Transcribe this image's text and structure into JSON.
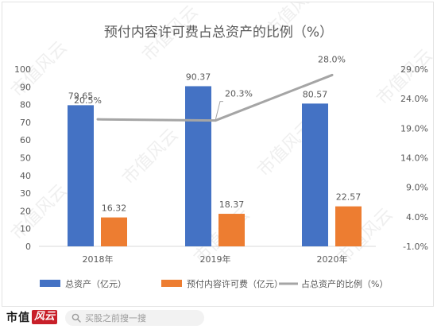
{
  "chart_data": {
    "type": "bar",
    "title": "预付内容许可费占总资产的比例（%）",
    "categories": [
      "2018年",
      "2019年",
      "2020年"
    ],
    "ylim": [
      0,
      100
    ],
    "y_ticks": [
      0,
      10,
      20,
      30,
      40,
      50,
      60,
      70,
      80,
      90,
      100
    ],
    "y2lim": [
      -1.0,
      29.0
    ],
    "y2_ticks": [
      "-1.0%",
      "4.0%",
      "9.0%",
      "14.0%",
      "19.0%",
      "24.0%",
      "29.0%"
    ],
    "series": [
      {
        "name": "总资产（亿元）",
        "type": "bar",
        "color": "#4472c4",
        "values": [
          79.65,
          90.37,
          80.57
        ],
        "labels": [
          "79.65",
          "90.37",
          "80.57"
        ]
      },
      {
        "name": "预付内容许可费（亿元）",
        "type": "bar",
        "color": "#ed7d31",
        "values": [
          16.32,
          18.37,
          22.57
        ],
        "labels": [
          "16.32",
          "18.37",
          "22.57"
        ]
      },
      {
        "name": "占总资产的比例（%）",
        "type": "line",
        "axis": "secondary",
        "color": "#a5a5a5",
        "values": [
          20.5,
          20.3,
          28.0
        ],
        "labels": [
          "20.5%",
          "20.3%",
          "28.0%"
        ]
      }
    ],
    "legend_position": "bottom",
    "grid": false
  },
  "watermark": "市值风云",
  "footer": {
    "brand_text": "市值",
    "brand_mark": "风云",
    "search_placeholder": "买股之前搜一搜"
  }
}
